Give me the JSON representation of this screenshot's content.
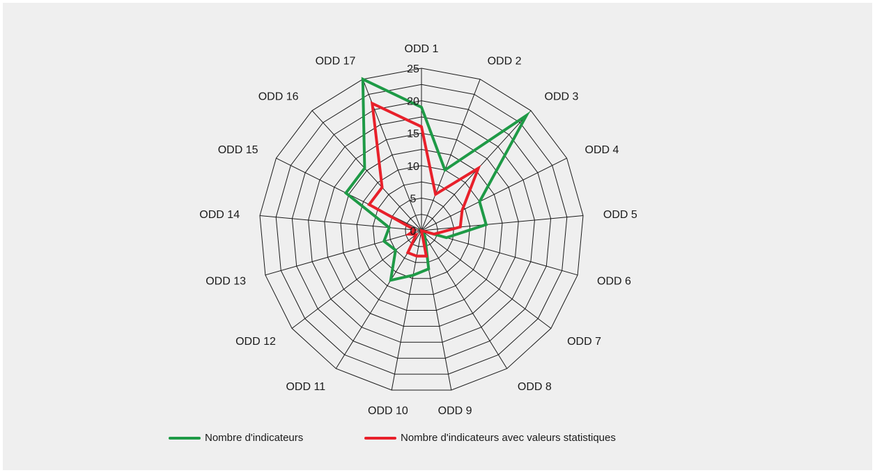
{
  "chart_data": {
    "type": "radar",
    "categories": [
      "ODD 1",
      "ODD 2",
      "ODD 3",
      "ODD 4",
      "ODD 5",
      "ODD 6",
      "ODD 7",
      "ODD 8",
      "ODD 9",
      "ODD 10",
      "ODD 11",
      "ODD 12",
      "ODD 13",
      "ODD 14",
      "ODD 15",
      "ODD 16",
      "ODD 17"
    ],
    "ticks": [
      "0",
      "5",
      "10",
      "15",
      "20",
      "25"
    ],
    "rlim": [
      0,
      25
    ],
    "series": [
      {
        "name": "Nombre d'indicateurs",
        "color": "#1e9a46",
        "values": [
          19,
          10,
          24,
          10,
          10,
          4,
          0,
          1,
          6,
          7,
          9,
          5,
          6,
          5,
          13,
          13,
          25
        ]
      },
      {
        "name": "Nombre d'indicateurs avec valeurs statistiques",
        "color": "#e8202a",
        "values": [
          16,
          6,
          13,
          7,
          6,
          2,
          0,
          0,
          4,
          4,
          4,
          1,
          2,
          1,
          9,
          9,
          21
        ]
      }
    ],
    "grid": true,
    "legend_position": "bottom"
  },
  "colors": {
    "background": "#efefef",
    "grid": "#1a1a1a"
  }
}
